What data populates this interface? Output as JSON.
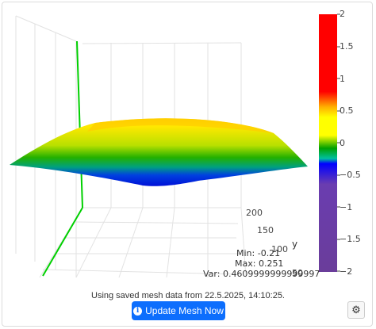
{
  "plot": {
    "colorbar_ticks": [
      "2",
      "1.5",
      "1",
      "0.5",
      "0",
      "−0.5",
      "−1",
      "−1.5",
      "−2"
    ],
    "y_axis_label": "y",
    "y_ticks": [
      "200",
      "150",
      "100",
      "50"
    ]
  },
  "stats": {
    "min": "Min: -0.21",
    "max": "Max: 0.251",
    "var": "Var: 0.4609999999999997"
  },
  "status": "Using saved mesh data from 22.5.2025, 14:10:25.",
  "update_button": {
    "label": "Update Mesh Now",
    "icon": "info-icon"
  },
  "settings_button": {
    "icon": "gear-icon"
  },
  "chart_data": {
    "type": "surface",
    "colorscale_range": [
      -2,
      2
    ],
    "stats": {
      "min": -0.21,
      "max": 0.251,
      "variance": 0.4609999999999997
    },
    "y_axis": {
      "label": "y",
      "ticks": [
        200,
        150,
        100,
        50
      ]
    }
  }
}
